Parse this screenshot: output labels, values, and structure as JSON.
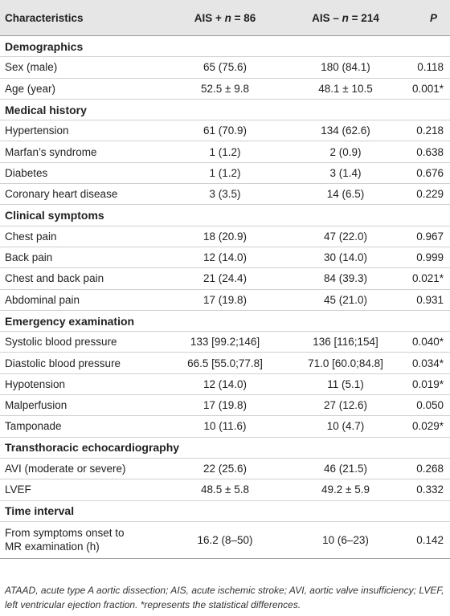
{
  "table": {
    "header": [
      {
        "text": "Characteristics"
      },
      {
        "parts": [
          "AIS + ",
          "n",
          " = 86"
        ]
      },
      {
        "parts": [
          "AIS – ",
          "n",
          " = 214"
        ]
      },
      {
        "parts": [
          "",
          "P",
          ""
        ]
      }
    ],
    "sections": [
      {
        "title": "Demographics",
        "rows": [
          [
            "Sex (male)",
            "65 (75.6)",
            "180 (84.1)",
            "0.118"
          ],
          [
            "Age (year)",
            "52.5 ± 9.8",
            "48.1 ± 10.5",
            "0.001*"
          ]
        ]
      },
      {
        "title": "Medical history",
        "rows": [
          [
            "Hypertension",
            "61 (70.9)",
            "134 (62.6)",
            "0.218"
          ],
          [
            "Marfan’s syndrome",
            "1 (1.2)",
            "2 (0.9)",
            "0.638"
          ],
          [
            "Diabetes",
            "1 (1.2)",
            "3 (1.4)",
            "0.676"
          ],
          [
            "Coronary heart disease",
            "3 (3.5)",
            "14 (6.5)",
            "0.229"
          ]
        ]
      },
      {
        "title": "Clinical symptoms",
        "rows": [
          [
            "Chest pain",
            "18 (20.9)",
            "47 (22.0)",
            "0.967"
          ],
          [
            "Back pain",
            "12 (14.0)",
            "30 (14.0)",
            "0.999"
          ],
          [
            "Chest and back pain",
            "21 (24.4)",
            "84 (39.3)",
            "0.021*"
          ],
          [
            "Abdominal pain",
            "17 (19.8)",
            "45 (21.0)",
            "0.931"
          ]
        ]
      },
      {
        "title": "Emergency examination",
        "rows": [
          [
            "Systolic blood pressure",
            "133 [99.2;146]",
            "136 [116;154]",
            "0.040*"
          ],
          [
            "Diastolic blood pressure",
            "66.5 [55.0;77.8]",
            "71.0 [60.0;84.8]",
            "0.034*"
          ],
          [
            "Hypotension",
            "12 (14.0)",
            "11 (5.1)",
            "0.019*"
          ],
          [
            "Malperfusion",
            "17 (19.8)",
            "27 (12.6)",
            "0.050"
          ],
          [
            "Tamponade",
            "10 (11.6)",
            "10 (4.7)",
            "0.029*"
          ]
        ]
      },
      {
        "title": "Transthoracic echocardiography",
        "rows": [
          [
            "AVI (moderate or severe)",
            "22 (25.6)",
            "46 (21.5)",
            "0.268"
          ],
          [
            "LVEF",
            "48.5 ± 5.8",
            "49.2 ± 5.9",
            "0.332"
          ]
        ]
      },
      {
        "title": "Time interval",
        "rows": [
          [
            "From symptoms onset to MR examination (h)",
            "16.2 (8–50)",
            "10 (6–23)",
            "0.142"
          ]
        ]
      }
    ],
    "footnote": "ATAAD, acute type A aortic dissection; AIS, acute ischemic stroke; AVI, aortic valve insufficiency; LVEF, left ventricular ejection fraction. *represents the statistical differences."
  }
}
